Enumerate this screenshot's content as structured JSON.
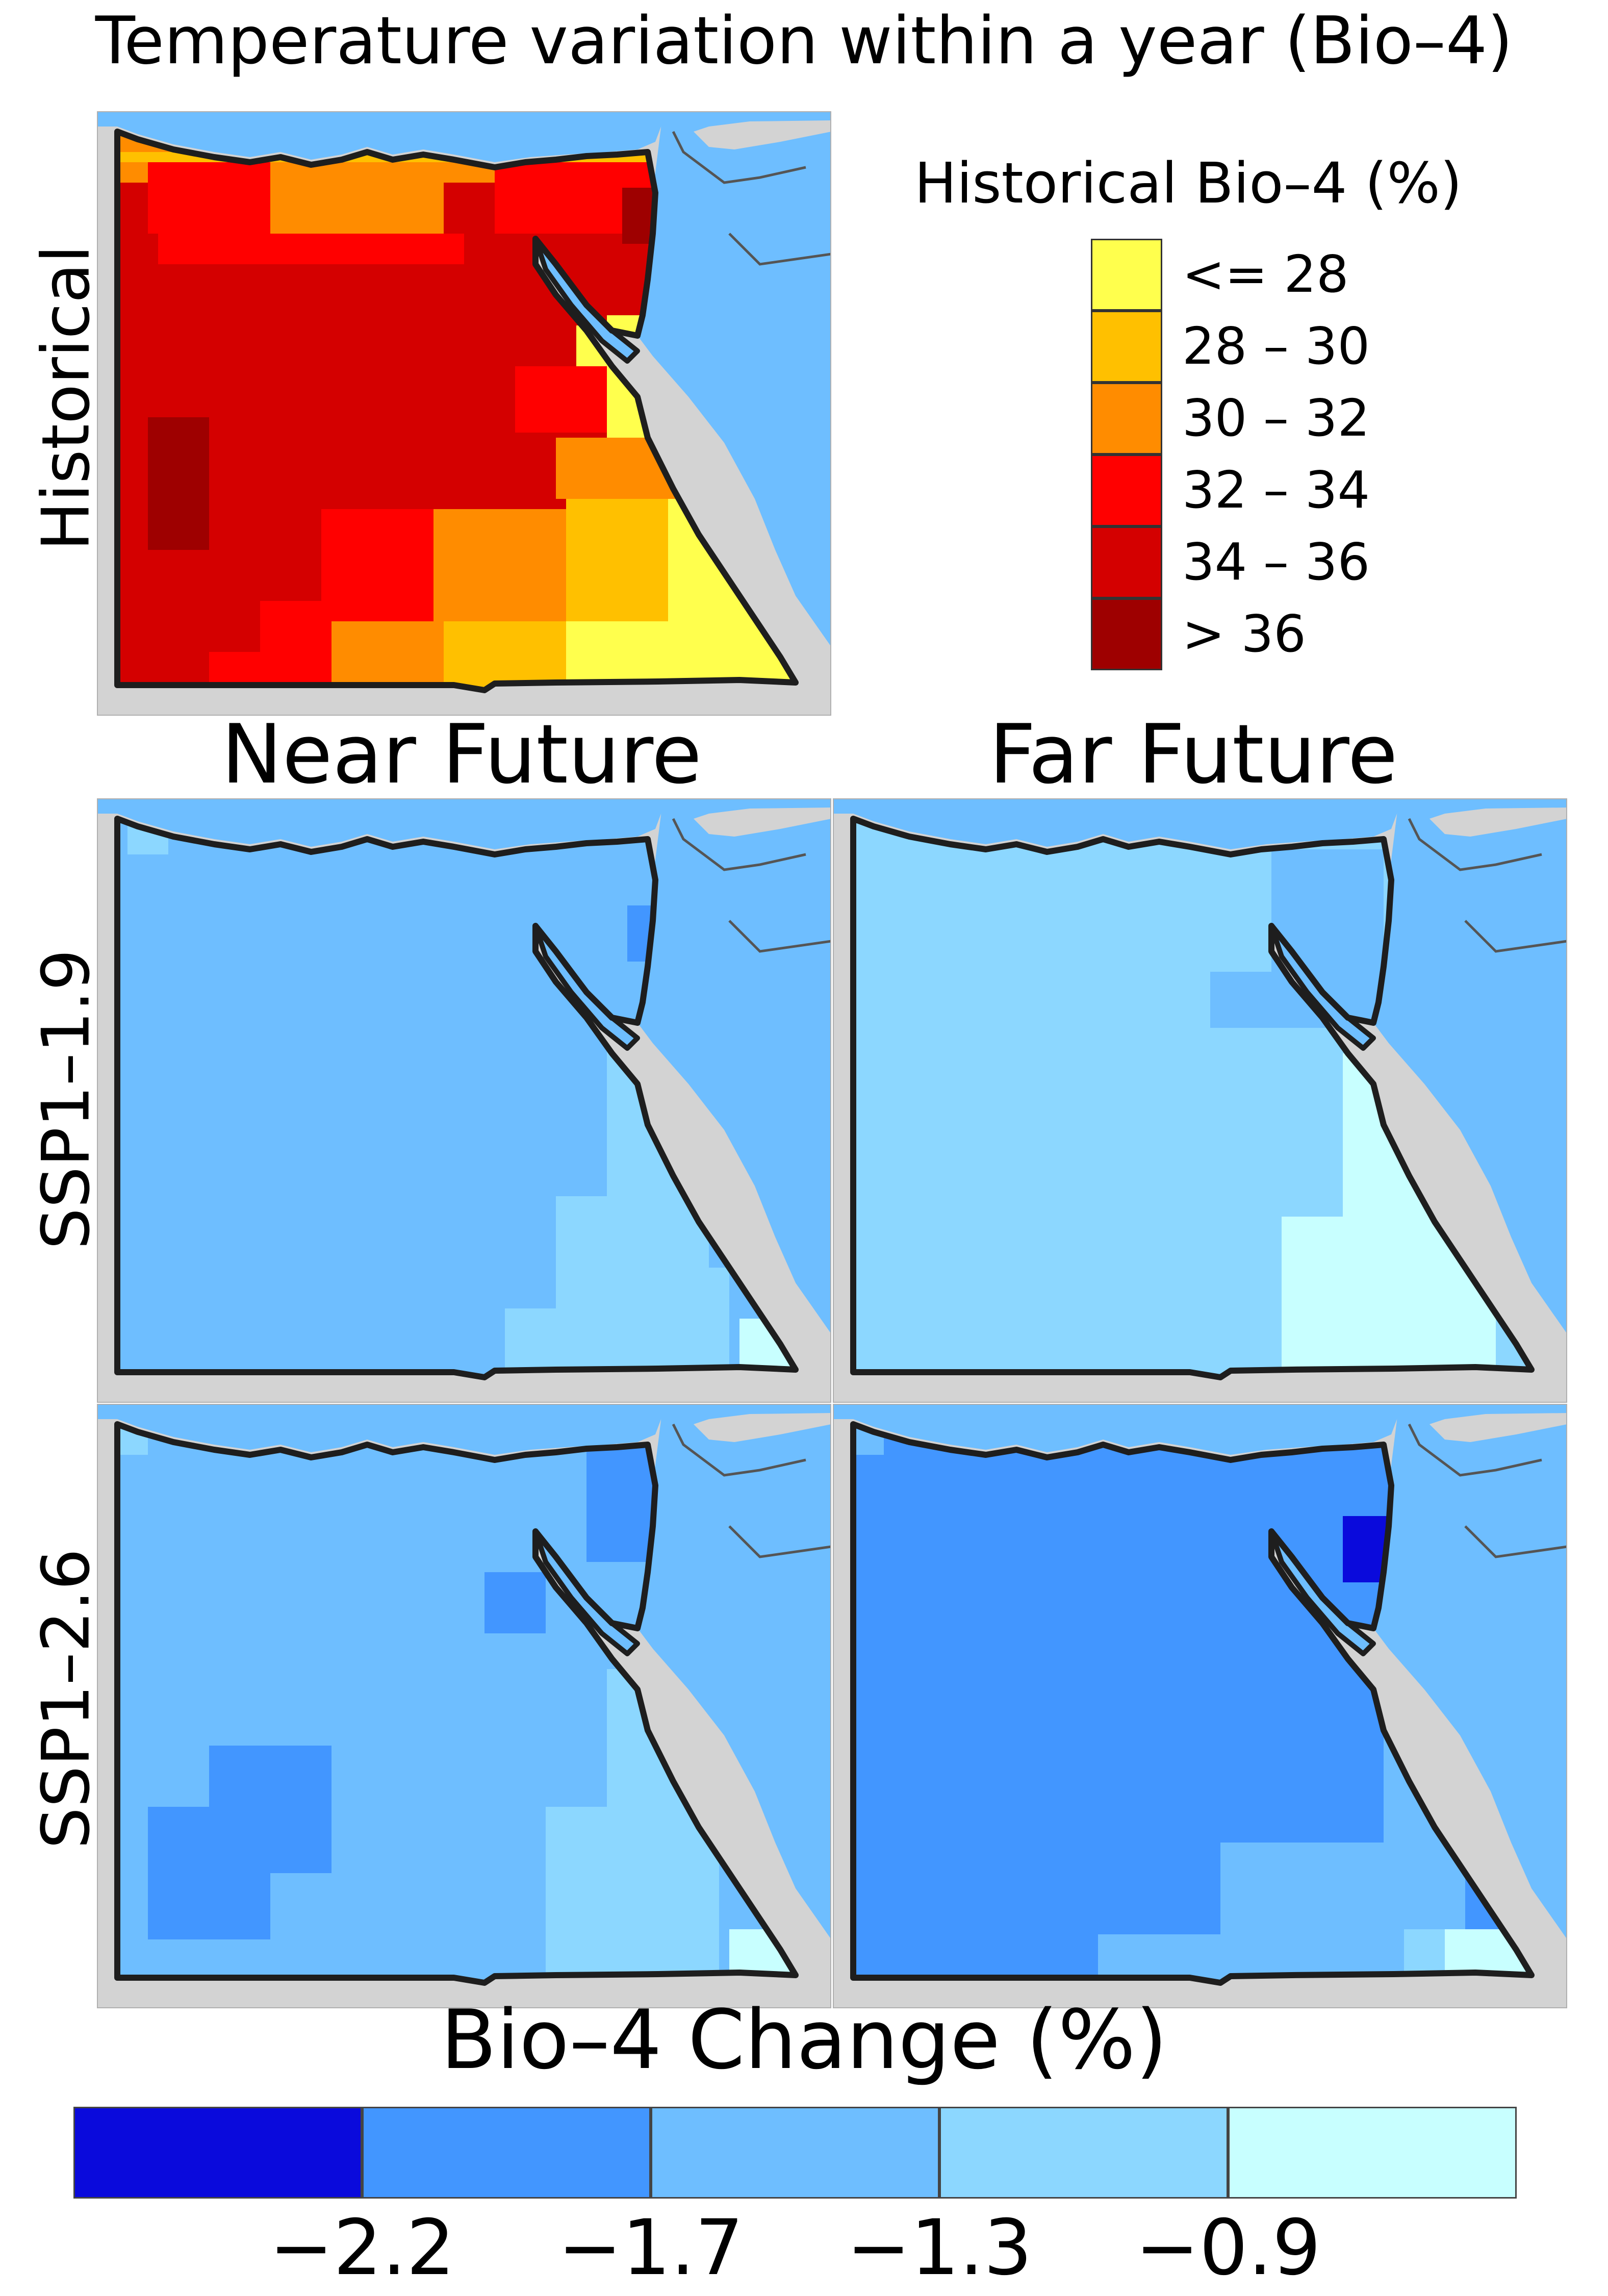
{
  "title": "Temperature variation within a year (Bio–4)",
  "rows": [
    "Historical",
    "SSP1–1.9",
    "SSP1–2.6"
  ],
  "columns": [
    "Near Future",
    "Far Future"
  ],
  "historical_legend": {
    "title": "Historical Bio–4 (%)",
    "classes": [
      {
        "label": "<= 28",
        "color": "#ffff4d"
      },
      {
        "label": "28 – 30",
        "color": "#ffc000"
      },
      {
        "label": "30 – 32",
        "color": "#ff8c00"
      },
      {
        "label": "32 – 34",
        "color": "#ff0000"
      },
      {
        "label": "34 – 36",
        "color": "#d40000"
      },
      {
        "label": "> 36",
        "color": "#9e0000"
      }
    ]
  },
  "change_legend": {
    "title": "Bio–4 Change (%)",
    "colors": [
      "#0a0adc",
      "#4296ff",
      "#6ebeff",
      "#8cd7ff",
      "#c8ffff"
    ],
    "ticks": [
      "−2.2",
      "−1.7",
      "−1.3",
      "−0.9"
    ]
  },
  "colors": {
    "sea": "#6ebeff",
    "land_outside": "#d3d3d3",
    "border": "#1e1e1e"
  }
}
